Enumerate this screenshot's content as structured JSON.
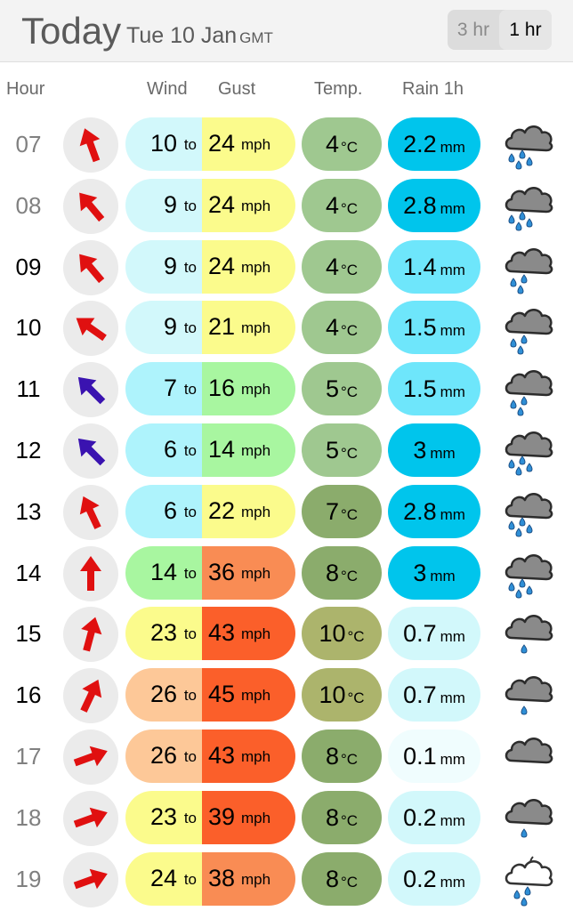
{
  "header": {
    "title": "Today",
    "date": "Tue 10 Jan",
    "timezone": "GMT",
    "interval_options": [
      "3 hr",
      "1 hr"
    ],
    "selected_interval": "1 hr"
  },
  "columns": {
    "hour": "Hour",
    "wind": "Wind",
    "gust": "Gust",
    "temp": "Temp.",
    "rain": "Rain 1h"
  },
  "units": {
    "wind_to": "to",
    "speed": "mph",
    "temp": "°C",
    "rain": "mm"
  },
  "rows": [
    {
      "hour": "07",
      "past": true,
      "dir": 20,
      "arrow_color": "#e01010",
      "wind": "10",
      "gust": "24",
      "wind_bg": "#d2f8fb",
      "gust_bg": "#fbfb8c",
      "temp": "4",
      "temp_bg": "#9fc890",
      "rain": "2.2",
      "rain_bg": "#00c5ec",
      "icon": "heavy-rain-cloud-icon"
    },
    {
      "hour": "08",
      "past": true,
      "dir": 40,
      "arrow_color": "#e01010",
      "wind": "9",
      "gust": "24",
      "wind_bg": "#d2f8fb",
      "gust_bg": "#fbfb8c",
      "temp": "4",
      "temp_bg": "#9fc890",
      "rain": "2.8",
      "rain_bg": "#00c5ec",
      "icon": "heavy-rain-cloud-icon"
    },
    {
      "hour": "09",
      "past": false,
      "dir": 40,
      "arrow_color": "#e01010",
      "wind": "9",
      "gust": "24",
      "wind_bg": "#d2f8fb",
      "gust_bg": "#fbfb8c",
      "temp": "4",
      "temp_bg": "#9fc890",
      "rain": "1.4",
      "rain_bg": "#6ee6fb",
      "icon": "rain-cloud-icon"
    },
    {
      "hour": "10",
      "past": false,
      "dir": 55,
      "arrow_color": "#e01010",
      "wind": "9",
      "gust": "21",
      "wind_bg": "#d2f8fb",
      "gust_bg": "#fbfb8c",
      "temp": "4",
      "temp_bg": "#9fc890",
      "rain": "1.5",
      "rain_bg": "#6ee6fb",
      "icon": "rain-cloud-icon"
    },
    {
      "hour": "11",
      "past": false,
      "dir": 45,
      "arrow_color": "#3a13b0",
      "wind": "7",
      "gust": "16",
      "wind_bg": "#aef3fc",
      "gust_bg": "#a8f6a0",
      "temp": "5",
      "temp_bg": "#9fc890",
      "rain": "1.5",
      "rain_bg": "#6ee6fb",
      "icon": "rain-cloud-icon"
    },
    {
      "hour": "12",
      "past": false,
      "dir": 45,
      "arrow_color": "#3a13b0",
      "wind": "6",
      "gust": "14",
      "wind_bg": "#aef3fc",
      "gust_bg": "#a8f6a0",
      "temp": "5",
      "temp_bg": "#9fc890",
      "rain": "3",
      "rain_bg": "#00c5ec",
      "icon": "heavy-rain-cloud-icon"
    },
    {
      "hour": "13",
      "past": false,
      "dir": 25,
      "arrow_color": "#e01010",
      "wind": "6",
      "gust": "22",
      "wind_bg": "#aef3fc",
      "gust_bg": "#fbfb8c",
      "temp": "7",
      "temp_bg": "#8bac6c",
      "rain": "2.8",
      "rain_bg": "#00c5ec",
      "icon": "heavy-rain-cloud-icon"
    },
    {
      "hour": "14",
      "past": false,
      "dir": 0,
      "arrow_color": "#e01010",
      "wind": "14",
      "gust": "36",
      "wind_bg": "#a8f6a0",
      "gust_bg": "#f98c54",
      "temp": "8",
      "temp_bg": "#8bac6c",
      "rain": "3",
      "rain_bg": "#00c5ec",
      "icon": "heavy-rain-cloud-icon"
    },
    {
      "hour": "15",
      "past": false,
      "dir": 345,
      "arrow_color": "#e01010",
      "wind": "23",
      "gust": "43",
      "wind_bg": "#fbfb8c",
      "gust_bg": "#fb5f2a",
      "temp": "10",
      "temp_bg": "#acb46c",
      "rain": "0.7",
      "rain_bg": "#d2f8fb",
      "icon": "light-rain-cloud-icon"
    },
    {
      "hour": "16",
      "past": false,
      "dir": 335,
      "arrow_color": "#e01010",
      "wind": "26",
      "gust": "45",
      "wind_bg": "#fdc898",
      "gust_bg": "#fb5f2a",
      "temp": "10",
      "temp_bg": "#acb46c",
      "rain": "0.7",
      "rain_bg": "#d2f8fb",
      "icon": "light-rain-cloud-icon"
    },
    {
      "hour": "17",
      "past": true,
      "dir": 290,
      "arrow_color": "#e01010",
      "wind": "26",
      "gust": "43",
      "wind_bg": "#fdc898",
      "gust_bg": "#fb5f2a",
      "temp": "8",
      "temp_bg": "#8bac6c",
      "rain": "0.1",
      "rain_bg": "#f0fdfe",
      "icon": "cloud-icon"
    },
    {
      "hour": "18",
      "past": true,
      "dir": 290,
      "arrow_color": "#e01010",
      "wind": "23",
      "gust": "39",
      "wind_bg": "#fbfb8c",
      "gust_bg": "#fb5f2a",
      "temp": "8",
      "temp_bg": "#8bac6c",
      "rain": "0.2",
      "rain_bg": "#d2f8fb",
      "icon": "light-rain-cloud-icon"
    },
    {
      "hour": "19",
      "past": true,
      "dir": 290,
      "arrow_color": "#e01010",
      "wind": "24",
      "gust": "38",
      "wind_bg": "#fbfb8c",
      "gust_bg": "#f98c54",
      "temp": "8",
      "temp_bg": "#8bac6c",
      "rain": "0.2",
      "rain_bg": "#d2f8fb",
      "icon": "night-rain-cloud-icon"
    }
  ]
}
